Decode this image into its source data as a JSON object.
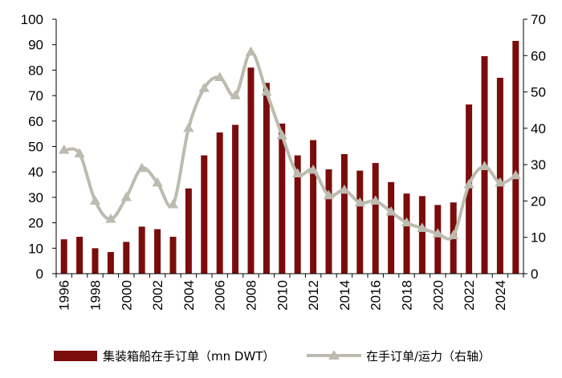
{
  "chart_data": {
    "type": "bar",
    "x": [
      1996,
      1997,
      1998,
      1999,
      2000,
      2001,
      2002,
      2003,
      2004,
      2005,
      2006,
      2007,
      2008,
      2009,
      2010,
      2011,
      2012,
      2013,
      2014,
      2015,
      2016,
      2017,
      2018,
      2019,
      2020,
      2021,
      2022,
      2023,
      2024,
      2025
    ],
    "x_tick_labels": [
      "1996",
      "1998",
      "2000",
      "2002",
      "2004",
      "2006",
      "2008",
      "2010",
      "2012",
      "2014",
      "2016",
      "2018",
      "2020",
      "2022",
      "2024"
    ],
    "series": [
      {
        "name": "集装箱船在手订单（mn DWT）",
        "type": "bar",
        "axis": "left",
        "color": "#7B0C0C",
        "values": [
          13.5,
          14.5,
          10,
          8.5,
          12.5,
          18.5,
          17.5,
          14.5,
          33.5,
          46.5,
          55.5,
          58.5,
          81,
          75,
          59,
          46.5,
          52.5,
          41,
          47,
          40.5,
          43.5,
          36,
          31.5,
          30.5,
          27,
          28,
          66.5,
          85.5,
          77,
          91.5
        ]
      },
      {
        "name": "在手订单/运力（右轴）",
        "type": "line",
        "axis": "right",
        "color": "#BDBBAF",
        "values": [
          34,
          33,
          20,
          15,
          21,
          29,
          25,
          19,
          40,
          51,
          54,
          49,
          61,
          50,
          38,
          27.5,
          28.5,
          21.5,
          23,
          19.5,
          20,
          17,
          14,
          12.5,
          11,
          10.5,
          24.5,
          29.5,
          25,
          27
        ]
      }
    ],
    "y_left": {
      "min": 0,
      "max": 100,
      "step": 10
    },
    "y_right": {
      "min": 0,
      "max": 70,
      "step": 10
    },
    "legend_position": "bottom",
    "grid": false
  }
}
